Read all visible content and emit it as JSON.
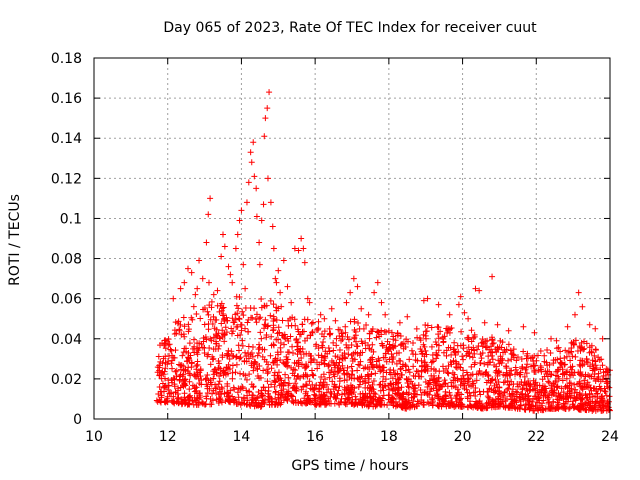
{
  "chart_data": {
    "type": "scatter",
    "title": "Day 065 of 2023, Rate Of TEC Index for receiver cuut",
    "xlabel": "GPS time / hours",
    "ylabel": "ROTI / TECUs",
    "xlim": [
      10,
      24
    ],
    "ylim": [
      0,
      0.18
    ],
    "xticks": [
      10,
      12,
      14,
      16,
      18,
      20,
      22,
      24
    ],
    "xtick_labels": [
      "10",
      "12",
      "14",
      "16",
      "18",
      "20",
      "22",
      "24"
    ],
    "yticks": [
      0,
      0.02,
      0.04,
      0.06,
      0.08,
      0.1,
      0.12,
      0.14,
      0.16,
      0.18
    ],
    "ytick_labels": [
      "0",
      "0.02",
      "0.04",
      "0.06",
      "0.08",
      "0.1",
      "0.12",
      "0.14",
      "0.16",
      "0.18"
    ],
    "grid": true,
    "marker": "+",
    "color": "#ff0000",
    "series": [
      {
        "name": "ROTI",
        "band_x": [
          11.7,
          12.0,
          12.5,
          13.0,
          13.5,
          14.0,
          14.5,
          15.0,
          15.5,
          16.0,
          16.5,
          17.0,
          17.5,
          18.0,
          18.5,
          19.0,
          19.5,
          20.0,
          20.5,
          21.0,
          21.5,
          22.0,
          22.5,
          23.0,
          23.5,
          24.0
        ],
        "band_low": [
          0.008,
          0.008,
          0.007,
          0.007,
          0.008,
          0.007,
          0.006,
          0.007,
          0.008,
          0.007,
          0.007,
          0.007,
          0.006,
          0.007,
          0.005,
          0.007,
          0.006,
          0.006,
          0.005,
          0.006,
          0.005,
          0.004,
          0.005,
          0.005,
          0.004,
          0.004
        ],
        "band_high": [
          0.035,
          0.045,
          0.055,
          0.058,
          0.06,
          0.062,
          0.062,
          0.058,
          0.05,
          0.05,
          0.045,
          0.05,
          0.048,
          0.045,
          0.042,
          0.048,
          0.045,
          0.048,
          0.042,
          0.04,
          0.035,
          0.033,
          0.037,
          0.04,
          0.038,
          0.025
        ],
        "points": [
          [
            12.15,
            0.06
          ],
          [
            12.35,
            0.065
          ],
          [
            12.45,
            0.068
          ],
          [
            12.55,
            0.075
          ],
          [
            12.65,
            0.073
          ],
          [
            12.75,
            0.062
          ],
          [
            12.85,
            0.079
          ],
          [
            12.8,
            0.065
          ],
          [
            12.95,
            0.07
          ],
          [
            13.05,
            0.088
          ],
          [
            13.1,
            0.102
          ],
          [
            13.15,
            0.11
          ],
          [
            13.12,
            0.068
          ],
          [
            13.25,
            0.062
          ],
          [
            13.35,
            0.064
          ],
          [
            13.45,
            0.081
          ],
          [
            13.5,
            0.092
          ],
          [
            13.55,
            0.086
          ],
          [
            13.65,
            0.076
          ],
          [
            13.7,
            0.072
          ],
          [
            13.75,
            0.068
          ],
          [
            13.85,
            0.085
          ],
          [
            13.9,
            0.092
          ],
          [
            13.95,
            0.099
          ],
          [
            14.0,
            0.104
          ],
          [
            14.05,
            0.077
          ],
          [
            14.1,
            0.065
          ],
          [
            14.15,
            0.108
          ],
          [
            14.2,
            0.118
          ],
          [
            14.25,
            0.133
          ],
          [
            14.28,
            0.128
          ],
          [
            14.32,
            0.138
          ],
          [
            14.35,
            0.121
          ],
          [
            14.4,
            0.115
          ],
          [
            14.42,
            0.101
          ],
          [
            14.48,
            0.088
          ],
          [
            14.5,
            0.077
          ],
          [
            14.55,
            0.099
          ],
          [
            14.6,
            0.107
          ],
          [
            14.62,
            0.141
          ],
          [
            14.65,
            0.15
          ],
          [
            14.7,
            0.155
          ],
          [
            14.75,
            0.163
          ],
          [
            14.72,
            0.12
          ],
          [
            14.8,
            0.108
          ],
          [
            14.85,
            0.096
          ],
          [
            14.88,
            0.085
          ],
          [
            14.92,
            0.07
          ],
          [
            14.95,
            0.068
          ],
          [
            15.0,
            0.074
          ],
          [
            15.05,
            0.063
          ],
          [
            15.15,
            0.079
          ],
          [
            15.25,
            0.066
          ],
          [
            15.35,
            0.058
          ],
          [
            15.45,
            0.085
          ],
          [
            15.55,
            0.084
          ],
          [
            15.62,
            0.09
          ],
          [
            15.68,
            0.085
          ],
          [
            15.72,
            0.078
          ],
          [
            15.8,
            0.06
          ],
          [
            15.85,
            0.058
          ],
          [
            16.15,
            0.052
          ],
          [
            16.25,
            0.05
          ],
          [
            16.45,
            0.055
          ],
          [
            16.55,
            0.049
          ],
          [
            16.85,
            0.058
          ],
          [
            16.95,
            0.063
          ],
          [
            17.05,
            0.07
          ],
          [
            17.15,
            0.066
          ],
          [
            17.25,
            0.055
          ],
          [
            17.45,
            0.052
          ],
          [
            17.6,
            0.063
          ],
          [
            17.7,
            0.068
          ],
          [
            17.8,
            0.058
          ],
          [
            17.9,
            0.052
          ],
          [
            18.3,
            0.048
          ],
          [
            18.5,
            0.051
          ],
          [
            18.95,
            0.059
          ],
          [
            19.05,
            0.06
          ],
          [
            19.35,
            0.057
          ],
          [
            19.65,
            0.052
          ],
          [
            19.9,
            0.057
          ],
          [
            19.95,
            0.061
          ],
          [
            20.05,
            0.053
          ],
          [
            20.15,
            0.05
          ],
          [
            20.35,
            0.065
          ],
          [
            20.45,
            0.064
          ],
          [
            20.6,
            0.048
          ],
          [
            20.8,
            0.071
          ],
          [
            20.95,
            0.047
          ],
          [
            21.25,
            0.044
          ],
          [
            21.65,
            0.046
          ],
          [
            21.95,
            0.043
          ],
          [
            22.4,
            0.04
          ],
          [
            22.55,
            0.039
          ],
          [
            22.85,
            0.046
          ],
          [
            23.05,
            0.052
          ],
          [
            23.15,
            0.063
          ],
          [
            23.25,
            0.056
          ],
          [
            23.45,
            0.047
          ],
          [
            23.6,
            0.045
          ],
          [
            23.8,
            0.04
          ],
          [
            23.9,
            0.025
          ],
          [
            23.95,
            0.022
          ]
        ]
      }
    ]
  }
}
